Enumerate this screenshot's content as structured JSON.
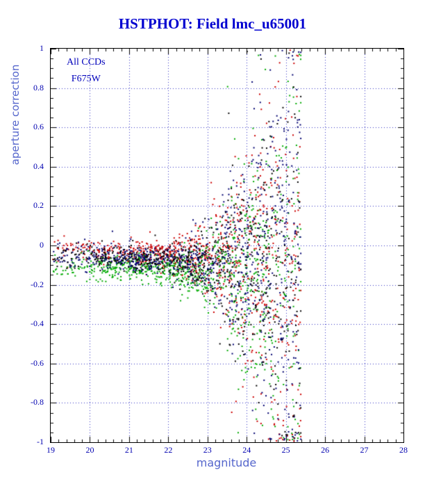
{
  "colors": {
    "title": "#0000d0",
    "tick": "#0000b0",
    "grid": "#3030c0",
    "axis_label": "#5566cc",
    "annotation": "#0000bb",
    "frame": "#000000",
    "background": "#ffffff"
  },
  "chart_data": {
    "type": "scatter",
    "title": "HSTPHOT: Field lmc_u65001",
    "xlabel": "magnitude",
    "ylabel": "aperture correction",
    "xlim": [
      19,
      28
    ],
    "ylim": [
      -1,
      1
    ],
    "x_ticks": [
      19,
      20,
      21,
      22,
      23,
      24,
      25,
      26,
      27,
      28
    ],
    "y_ticks": [
      1,
      0.8,
      0.6,
      0.4,
      0.2,
      0,
      -0.2,
      -0.4,
      -0.6,
      -0.8,
      -1
    ],
    "x_minor_step": 0.2,
    "y_minor_step": 0.05,
    "grid": true,
    "grid_style": "dotted",
    "legend": "none",
    "point_size": 2,
    "annotations": [
      {
        "text": "All CCDs",
        "x": 19.9,
        "y": 0.93
      },
      {
        "text": "F675W",
        "x": 19.9,
        "y": 0.845
      }
    ],
    "x_model": {
      "min": 19,
      "span": 6.4,
      "pow": 0.65,
      "max": 25.38
    },
    "spread_model": {
      "sigma_base": 0.032,
      "sigma_scale": 0.5,
      "fan_start": 21.8,
      "fan_width": 3.2,
      "trend": -0.008,
      "outlier_prob": 0.03,
      "outlier_mult": 2.5
    },
    "series": [
      {
        "name": "ccd-red",
        "color": "#cc0000",
        "count": 840,
        "seed": 101,
        "y_offset": -0.02
      },
      {
        "name": "ccd-green",
        "color": "#00aa00",
        "count": 880,
        "seed": 202,
        "y_offset": -0.1
      },
      {
        "name": "ccd-navy",
        "color": "#000070",
        "count": 840,
        "seed": 303,
        "y_offset": -0.05
      },
      {
        "name": "ccd-black",
        "color": "#000000",
        "count": 620,
        "seed": 404,
        "y_offset": -0.05
      }
    ]
  }
}
